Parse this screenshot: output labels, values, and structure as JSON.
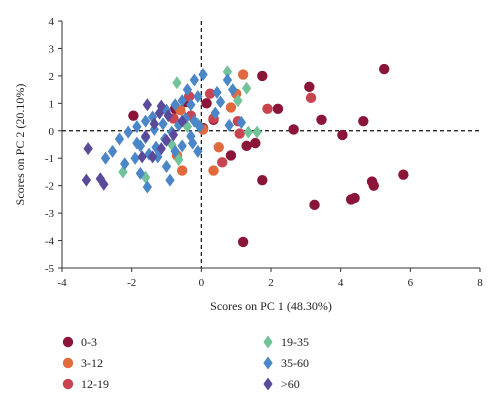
{
  "chart_data": {
    "type": "scatter",
    "xlabel": "Scores on PC 1 (48.30%)",
    "ylabel": "Scores on PC 2 (20.10%)",
    "xlim": [
      -4,
      8
    ],
    "ylim": [
      -5,
      4
    ],
    "xticks": [
      -4,
      -2,
      0,
      2,
      4,
      6,
      8
    ],
    "yticks": [
      -5,
      -4,
      -3,
      -2,
      -1,
      0,
      1,
      2,
      3,
      4
    ],
    "grid": false,
    "zero_lines": "dashed",
    "legend_placement": "bottom, two columns",
    "series": [
      {
        "name": "0-3",
        "color": "#8b1538",
        "marker": "circle",
        "points": [
          [
            5.25,
            2.25
          ],
          [
            4.65,
            0.35
          ],
          [
            4.05,
            -0.15
          ],
          [
            3.45,
            0.4
          ],
          [
            3.1,
            1.6
          ],
          [
            2.65,
            0.05
          ],
          [
            2.2,
            0.8
          ],
          [
            1.75,
            2.0
          ],
          [
            1.55,
            -0.45
          ],
          [
            1.3,
            -0.55
          ],
          [
            0.85,
            -0.9
          ],
          [
            1.75,
            -1.8
          ],
          [
            3.25,
            -2.7
          ],
          [
            1.2,
            -4.05
          ],
          [
            4.3,
            -2.5
          ],
          [
            4.4,
            -2.45
          ],
          [
            4.9,
            -1.85
          ],
          [
            4.95,
            -2.0
          ],
          [
            5.8,
            -1.6
          ],
          [
            0.05,
            0.1
          ],
          [
            -0.75,
            0.8
          ],
          [
            -1.95,
            0.55
          ],
          [
            0.15,
            1.0
          ],
          [
            -0.45,
            1.05
          ],
          [
            0.35,
            0.4
          ]
        ]
      },
      {
        "name": "3-12",
        "color": "#e06a3e",
        "marker": "circle",
        "points": [
          [
            1.2,
            2.05
          ],
          [
            1.0,
            1.35
          ],
          [
            0.85,
            0.85
          ],
          [
            0.5,
            -0.6
          ],
          [
            0.35,
            -1.45
          ],
          [
            -0.55,
            -1.45
          ],
          [
            -0.7,
            -0.9
          ],
          [
            -0.6,
            0.75
          ],
          [
            0.05,
            0.05
          ]
        ]
      },
      {
        "name": "12-19",
        "color": "#c84450",
        "marker": "circle",
        "points": [
          [
            3.15,
            1.2
          ],
          [
            1.9,
            0.8
          ],
          [
            1.1,
            -0.1
          ],
          [
            0.6,
            -1.15
          ],
          [
            0.35,
            0.45
          ],
          [
            -0.35,
            1.25
          ],
          [
            0.25,
            1.35
          ],
          [
            -0.8,
            0.45
          ],
          [
            1.05,
            0.35
          ],
          [
            -0.3,
            0.55
          ]
        ]
      },
      {
        "name": "19-35",
        "color": "#72c39a",
        "marker": "diamond",
        "points": [
          [
            -0.7,
            1.75
          ],
          [
            0.75,
            2.15
          ],
          [
            1.3,
            1.55
          ],
          [
            1.05,
            1.1
          ],
          [
            1.6,
            -0.05
          ],
          [
            1.35,
            -0.05
          ],
          [
            -1.6,
            -1.7
          ],
          [
            -2.25,
            -1.5
          ],
          [
            -0.65,
            -1.05
          ],
          [
            -0.85,
            -0.5
          ],
          [
            -0.1,
            0.25
          ],
          [
            -0.4,
            0.15
          ]
        ]
      },
      {
        "name": "35-60",
        "color": "#4a86c8",
        "marker": "diamond",
        "points": [
          [
            0.05,
            2.05
          ],
          [
            -0.2,
            1.85
          ],
          [
            -0.4,
            1.5
          ],
          [
            -0.1,
            1.25
          ],
          [
            0.45,
            1.4
          ],
          [
            0.75,
            1.85
          ],
          [
            0.9,
            1.5
          ],
          [
            0.55,
            1.05
          ],
          [
            0.4,
            0.65
          ],
          [
            0.8,
            0.2
          ],
          [
            1.15,
            0.3
          ],
          [
            -0.3,
            0.95
          ],
          [
            -0.55,
            1.1
          ],
          [
            -0.75,
            0.95
          ],
          [
            -1.0,
            0.75
          ],
          [
            -1.2,
            0.65
          ],
          [
            -1.4,
            0.5
          ],
          [
            -1.6,
            0.35
          ],
          [
            -1.85,
            0.15
          ],
          [
            -2.1,
            -0.05
          ],
          [
            -2.35,
            -0.3
          ],
          [
            -2.55,
            -0.75
          ],
          [
            -2.75,
            -1.0
          ],
          [
            -2.2,
            -1.2
          ],
          [
            -1.9,
            -1.0
          ],
          [
            -1.75,
            -0.55
          ],
          [
            -1.5,
            -0.85
          ],
          [
            -1.3,
            -0.6
          ],
          [
            -1.05,
            -0.3
          ],
          [
            -0.85,
            -0.05
          ],
          [
            -0.65,
            0.2
          ],
          [
            -0.45,
            0.45
          ],
          [
            -0.2,
            0.35
          ],
          [
            -0.05,
            0.15
          ],
          [
            -0.3,
            -0.2
          ],
          [
            -0.55,
            -0.55
          ],
          [
            -0.75,
            -0.75
          ],
          [
            -1.0,
            -1.3
          ],
          [
            -1.25,
            -0.95
          ],
          [
            -1.55,
            -2.05
          ],
          [
            -1.75,
            -1.55
          ],
          [
            -0.9,
            -1.8
          ],
          [
            -0.25,
            -0.45
          ],
          [
            -0.1,
            -0.75
          ],
          [
            -1.1,
            0.25
          ],
          [
            -1.35,
            0.05
          ],
          [
            -1.6,
            -0.25
          ],
          [
            -1.85,
            -0.45
          ]
        ]
      },
      {
        "name": ">60",
        "color": "#5b4a9a",
        "marker": "diamond",
        "points": [
          [
            -3.25,
            -0.65
          ],
          [
            -3.3,
            -1.8
          ],
          [
            -2.9,
            -1.75
          ],
          [
            -2.8,
            -1.95
          ],
          [
            -1.15,
            0.9
          ],
          [
            -1.2,
            0.65
          ],
          [
            -1.55,
            0.95
          ],
          [
            -1.35,
            0.25
          ],
          [
            -1.6,
            -0.2
          ],
          [
            -1.0,
            -0.35
          ],
          [
            -1.4,
            -0.95
          ],
          [
            -1.7,
            -0.95
          ],
          [
            -1.15,
            -0.65
          ],
          [
            -0.8,
            -0.15
          ],
          [
            -0.55,
            0.35
          ],
          [
            -0.95,
            0.55
          ]
        ]
      }
    ]
  }
}
